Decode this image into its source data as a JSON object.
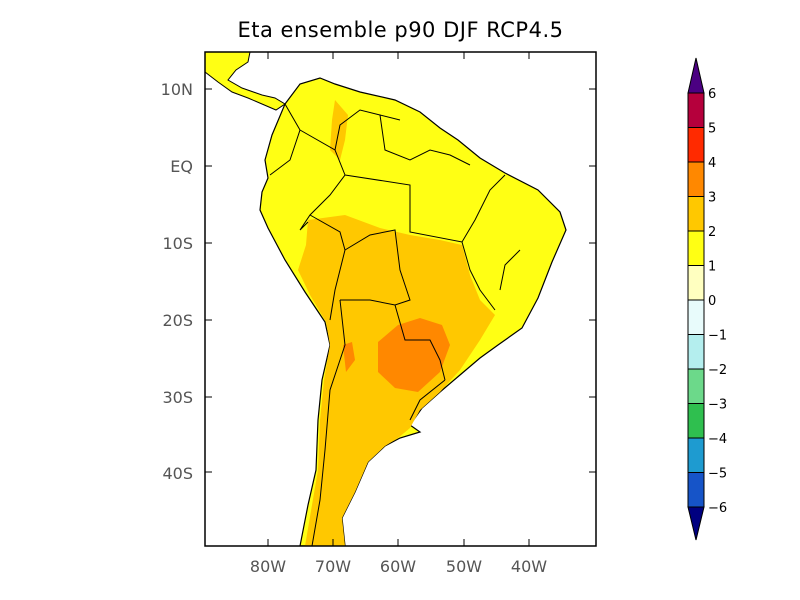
{
  "title": "Eta ensemble p90 DJF RCP4.5",
  "map": {
    "projection": "lat-lon",
    "lat_range": [
      "15N",
      "50S"
    ],
    "lon_range": [
      "90W",
      "30W"
    ],
    "lat_ticks": [
      "10N",
      "EQ",
      "10S",
      "20S",
      "30S",
      "40S"
    ],
    "lon_ticks": [
      "80W",
      "70W",
      "60W",
      "50W",
      "40W"
    ]
  },
  "colorbar": {
    "labels": [
      "6",
      "5",
      "4",
      "3",
      "2",
      "1",
      "0",
      "−1",
      "−2",
      "−3",
      "−4",
      "−5",
      "−6"
    ],
    "colors": [
      "#4b0082",
      "#b5003c",
      "#ff2a00",
      "#ff8800",
      "#ffc800",
      "#ffff14",
      "#ffffc0",
      "#e8fbfb",
      "#b4eeee",
      "#6cd98a",
      "#2fbf4f",
      "#1e9bd0",
      "#1654c8",
      "#000080"
    ]
  }
}
